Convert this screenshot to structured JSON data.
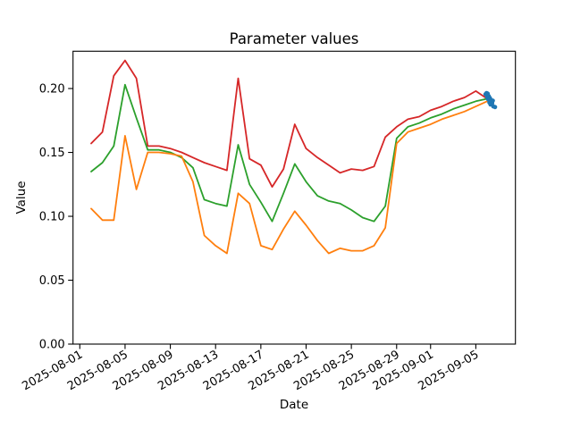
{
  "chart": {
    "title": "Parameter values",
    "xlabel": "Date",
    "ylabel": "Value"
  },
  "chart_data": {
    "type": "line",
    "title": "Parameter values",
    "xlabel": "Date",
    "ylabel": "Value",
    "grid": false,
    "legend": "none",
    "background": "#ffffff",
    "spine_color": "#000000",
    "ylim": [
      0.0,
      0.2292
    ],
    "xlim_days_since_2025_08_01": [
      -0.6,
      38.5
    ],
    "x_dates": [
      "2025-08-02",
      "2025-08-03",
      "2025-08-04",
      "2025-08-05",
      "2025-08-06",
      "2025-08-07",
      "2025-08-08",
      "2025-08-09",
      "2025-08-10",
      "2025-08-11",
      "2025-08-12",
      "2025-08-13",
      "2025-08-14",
      "2025-08-15",
      "2025-08-16",
      "2025-08-17",
      "2025-08-18",
      "2025-08-19",
      "2025-08-20",
      "2025-08-21",
      "2025-08-22",
      "2025-08-23",
      "2025-08-24",
      "2025-08-25",
      "2025-08-26",
      "2025-08-27",
      "2025-08-28",
      "2025-08-29",
      "2025-08-30",
      "2025-08-31",
      "2025-09-01",
      "2025-09-02",
      "2025-09-03",
      "2025-09-04",
      "2025-09-05",
      "2025-09-06"
    ],
    "x_days": [
      1,
      2,
      3,
      4,
      5,
      6,
      7,
      8,
      9,
      10,
      11,
      12,
      13,
      14,
      15,
      16,
      17,
      18,
      19,
      20,
      21,
      22,
      23,
      24,
      25,
      26,
      27,
      28,
      29,
      30,
      31,
      32,
      33,
      34,
      35,
      36
    ],
    "series": [
      {
        "name": "red-line",
        "color": "#d62728",
        "values": [
          0.157,
          0.166,
          0.21,
          0.222,
          0.208,
          0.155,
          0.155,
          0.153,
          0.15,
          0.146,
          0.142,
          0.139,
          0.136,
          0.208,
          0.145,
          0.14,
          0.123,
          0.137,
          0.172,
          0.153,
          0.146,
          0.14,
          0.134,
          0.137,
          0.136,
          0.139,
          0.162,
          0.17,
          0.176,
          0.178,
          0.183,
          0.186,
          0.19,
          0.193,
          0.198,
          0.192
        ]
      },
      {
        "name": "green-line",
        "color": "#2ca02c",
        "values": [
          0.135,
          0.142,
          0.155,
          0.203,
          0.177,
          0.152,
          0.152,
          0.15,
          0.146,
          0.138,
          0.113,
          0.11,
          0.108,
          0.156,
          0.125,
          0.111,
          0.096,
          0.118,
          0.141,
          0.127,
          0.116,
          0.112,
          0.11,
          0.105,
          0.099,
          0.096,
          0.108,
          0.161,
          0.17,
          0.173,
          0.177,
          0.18,
          0.184,
          0.187,
          0.19,
          0.192
        ]
      },
      {
        "name": "orange-line",
        "color": "#ff7f0e",
        "values": [
          0.106,
          0.097,
          0.097,
          0.163,
          0.121,
          0.15,
          0.15,
          0.149,
          0.147,
          0.127,
          0.085,
          0.077,
          0.071,
          0.118,
          0.11,
          0.077,
          0.074,
          0.09,
          0.104,
          0.093,
          0.081,
          0.071,
          0.075,
          0.073,
          0.073,
          0.077,
          0.091,
          0.157,
          0.166,
          0.169,
          0.172,
          0.176,
          0.179,
          0.182,
          0.186,
          0.19
        ]
      }
    ],
    "scatter": {
      "name": "blue-scatter",
      "color": "#1f77b4",
      "marker_radius": 2.4,
      "points": [
        [
          35.85,
          0.1955
        ],
        [
          35.95,
          0.1965
        ],
        [
          36.0,
          0.193
        ],
        [
          36.05,
          0.196
        ],
        [
          36.1,
          0.1915
        ],
        [
          36.15,
          0.194
        ],
        [
          36.2,
          0.189
        ],
        [
          36.25,
          0.1925
        ],
        [
          36.3,
          0.1875
        ],
        [
          36.35,
          0.191
        ],
        [
          36.45,
          0.1885
        ],
        [
          36.5,
          0.1905
        ],
        [
          36.55,
          0.186
        ],
        [
          36.7,
          0.1855
        ]
      ]
    },
    "x_ticks": [
      {
        "label": "2025-08-01",
        "day": 0
      },
      {
        "label": "2025-08-05",
        "day": 4
      },
      {
        "label": "2025-08-09",
        "day": 8
      },
      {
        "label": "2025-08-13",
        "day": 12
      },
      {
        "label": "2025-08-17",
        "day": 16
      },
      {
        "label": "2025-08-21",
        "day": 20
      },
      {
        "label": "2025-08-25",
        "day": 24
      },
      {
        "label": "2025-08-29",
        "day": 28
      },
      {
        "label": "2025-09-01",
        "day": 31
      },
      {
        "label": "2025-09-05",
        "day": 35
      }
    ],
    "x_tick_rotation_deg": 30,
    "y_ticks": [
      {
        "label": "0.00",
        "value": 0.0
      },
      {
        "label": "0.05",
        "value": 0.05
      },
      {
        "label": "0.10",
        "value": 0.1
      },
      {
        "label": "0.15",
        "value": 0.15
      },
      {
        "label": "0.20",
        "value": 0.2
      }
    ]
  }
}
